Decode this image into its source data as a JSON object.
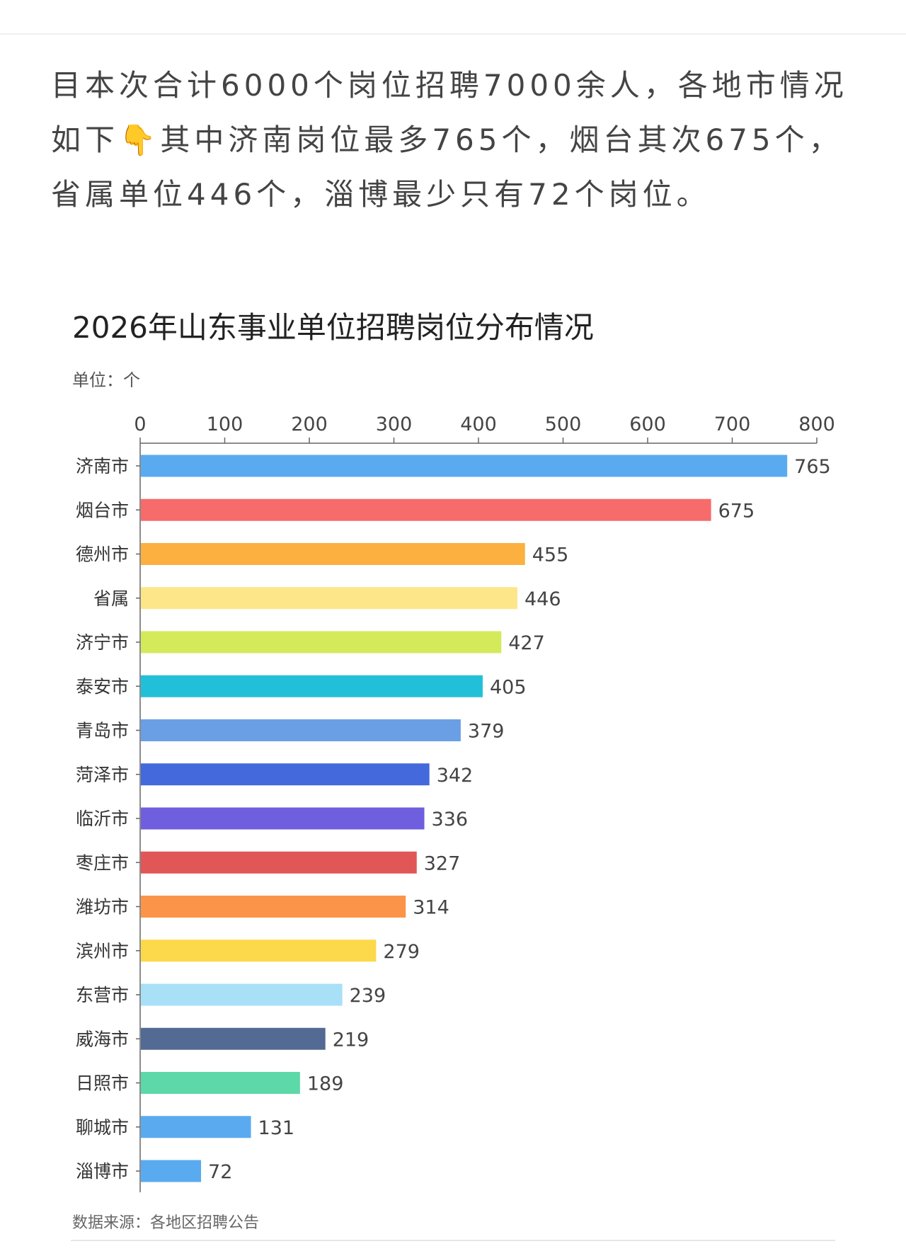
{
  "post": {
    "text_before_emoji": "目本次合计6000个岗位招聘7000余人，各地市情况如下",
    "emoji": "👇",
    "text_after_emoji": "其中济南岗位最多765个，烟台其次675个，省属单位446个，淄博最少只有72个岗位。"
  },
  "chart_data": {
    "type": "bar",
    "orientation": "horizontal",
    "title": "2026年山东事业单位招聘岗位分布情况",
    "unit_label": "单位：个",
    "source": "数据来源：各地区招聘公告",
    "xlim": [
      0,
      800
    ],
    "x_ticks": [
      0,
      100,
      200,
      300,
      400,
      500,
      600,
      700,
      800
    ],
    "x_axis_position": "top",
    "grid": false,
    "categories": [
      "济南市",
      "烟台市",
      "德州市",
      "省属",
      "济宁市",
      "泰安市",
      "青岛市",
      "菏泽市",
      "临沂市",
      "枣庄市",
      "潍坊市",
      "滨州市",
      "东营市",
      "威海市",
      "日照市",
      "聊城市",
      "淄博市"
    ],
    "values": [
      765,
      675,
      455,
      446,
      427,
      405,
      379,
      342,
      336,
      327,
      314,
      279,
      239,
      219,
      189,
      131,
      72
    ],
    "colors": [
      "#5aaaf0",
      "#f76b6b",
      "#fbb040",
      "#fde68a",
      "#d4ea5a",
      "#22c0d8",
      "#6a9fe6",
      "#4369dc",
      "#6f5fde",
      "#e15656",
      "#fb9448",
      "#fcd94a",
      "#a8e0f8",
      "#536a94",
      "#5dd8a8",
      "#5aaaf0",
      "#5aaaf0"
    ]
  }
}
